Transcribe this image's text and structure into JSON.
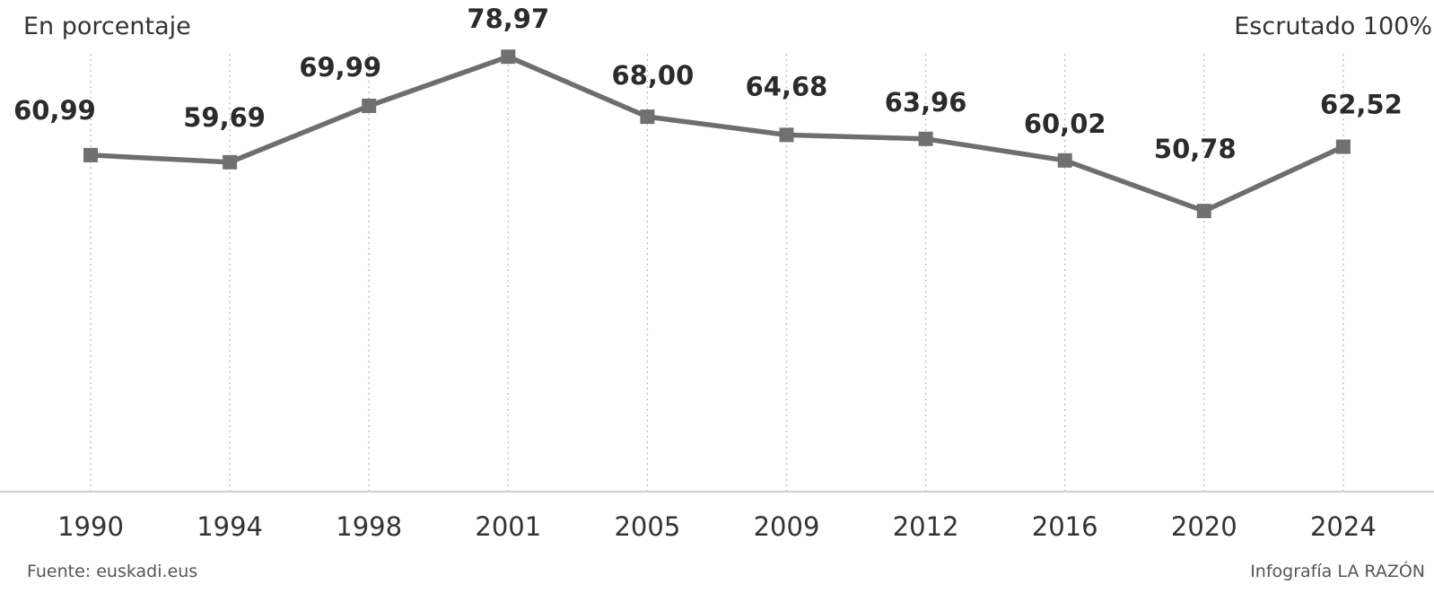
{
  "header": {
    "subtitle": "En porcentaje",
    "scrutiny": "Escrutado 100%"
  },
  "footer": {
    "source": "Fuente: euskadi.eus",
    "credit": "Infografía LA RAZÓN"
  },
  "chart_data": {
    "type": "line",
    "x": [
      "1990",
      "1994",
      "1998",
      "2001",
      "2005",
      "2009",
      "2012",
      "2016",
      "2020",
      "2024"
    ],
    "series": [
      {
        "values": [
          60.99,
          59.69,
          69.99,
          78.97,
          68.0,
          64.68,
          63.96,
          60.02,
          50.78,
          62.52
        ],
        "labels": [
          "60,99",
          "59,69",
          "69,99",
          "78,97",
          "68,00",
          "64,68",
          "63,96",
          "60,02",
          "50,78",
          "62,52"
        ]
      }
    ],
    "ylim": [
      0,
      80
    ],
    "grid": "vertical dotted lines at each year",
    "legend": "none",
    "colors": {
      "line": "#6e6e6e",
      "marker": "#707070",
      "grid": "#bdbdbd",
      "baseline": "#cfcfcf"
    }
  }
}
